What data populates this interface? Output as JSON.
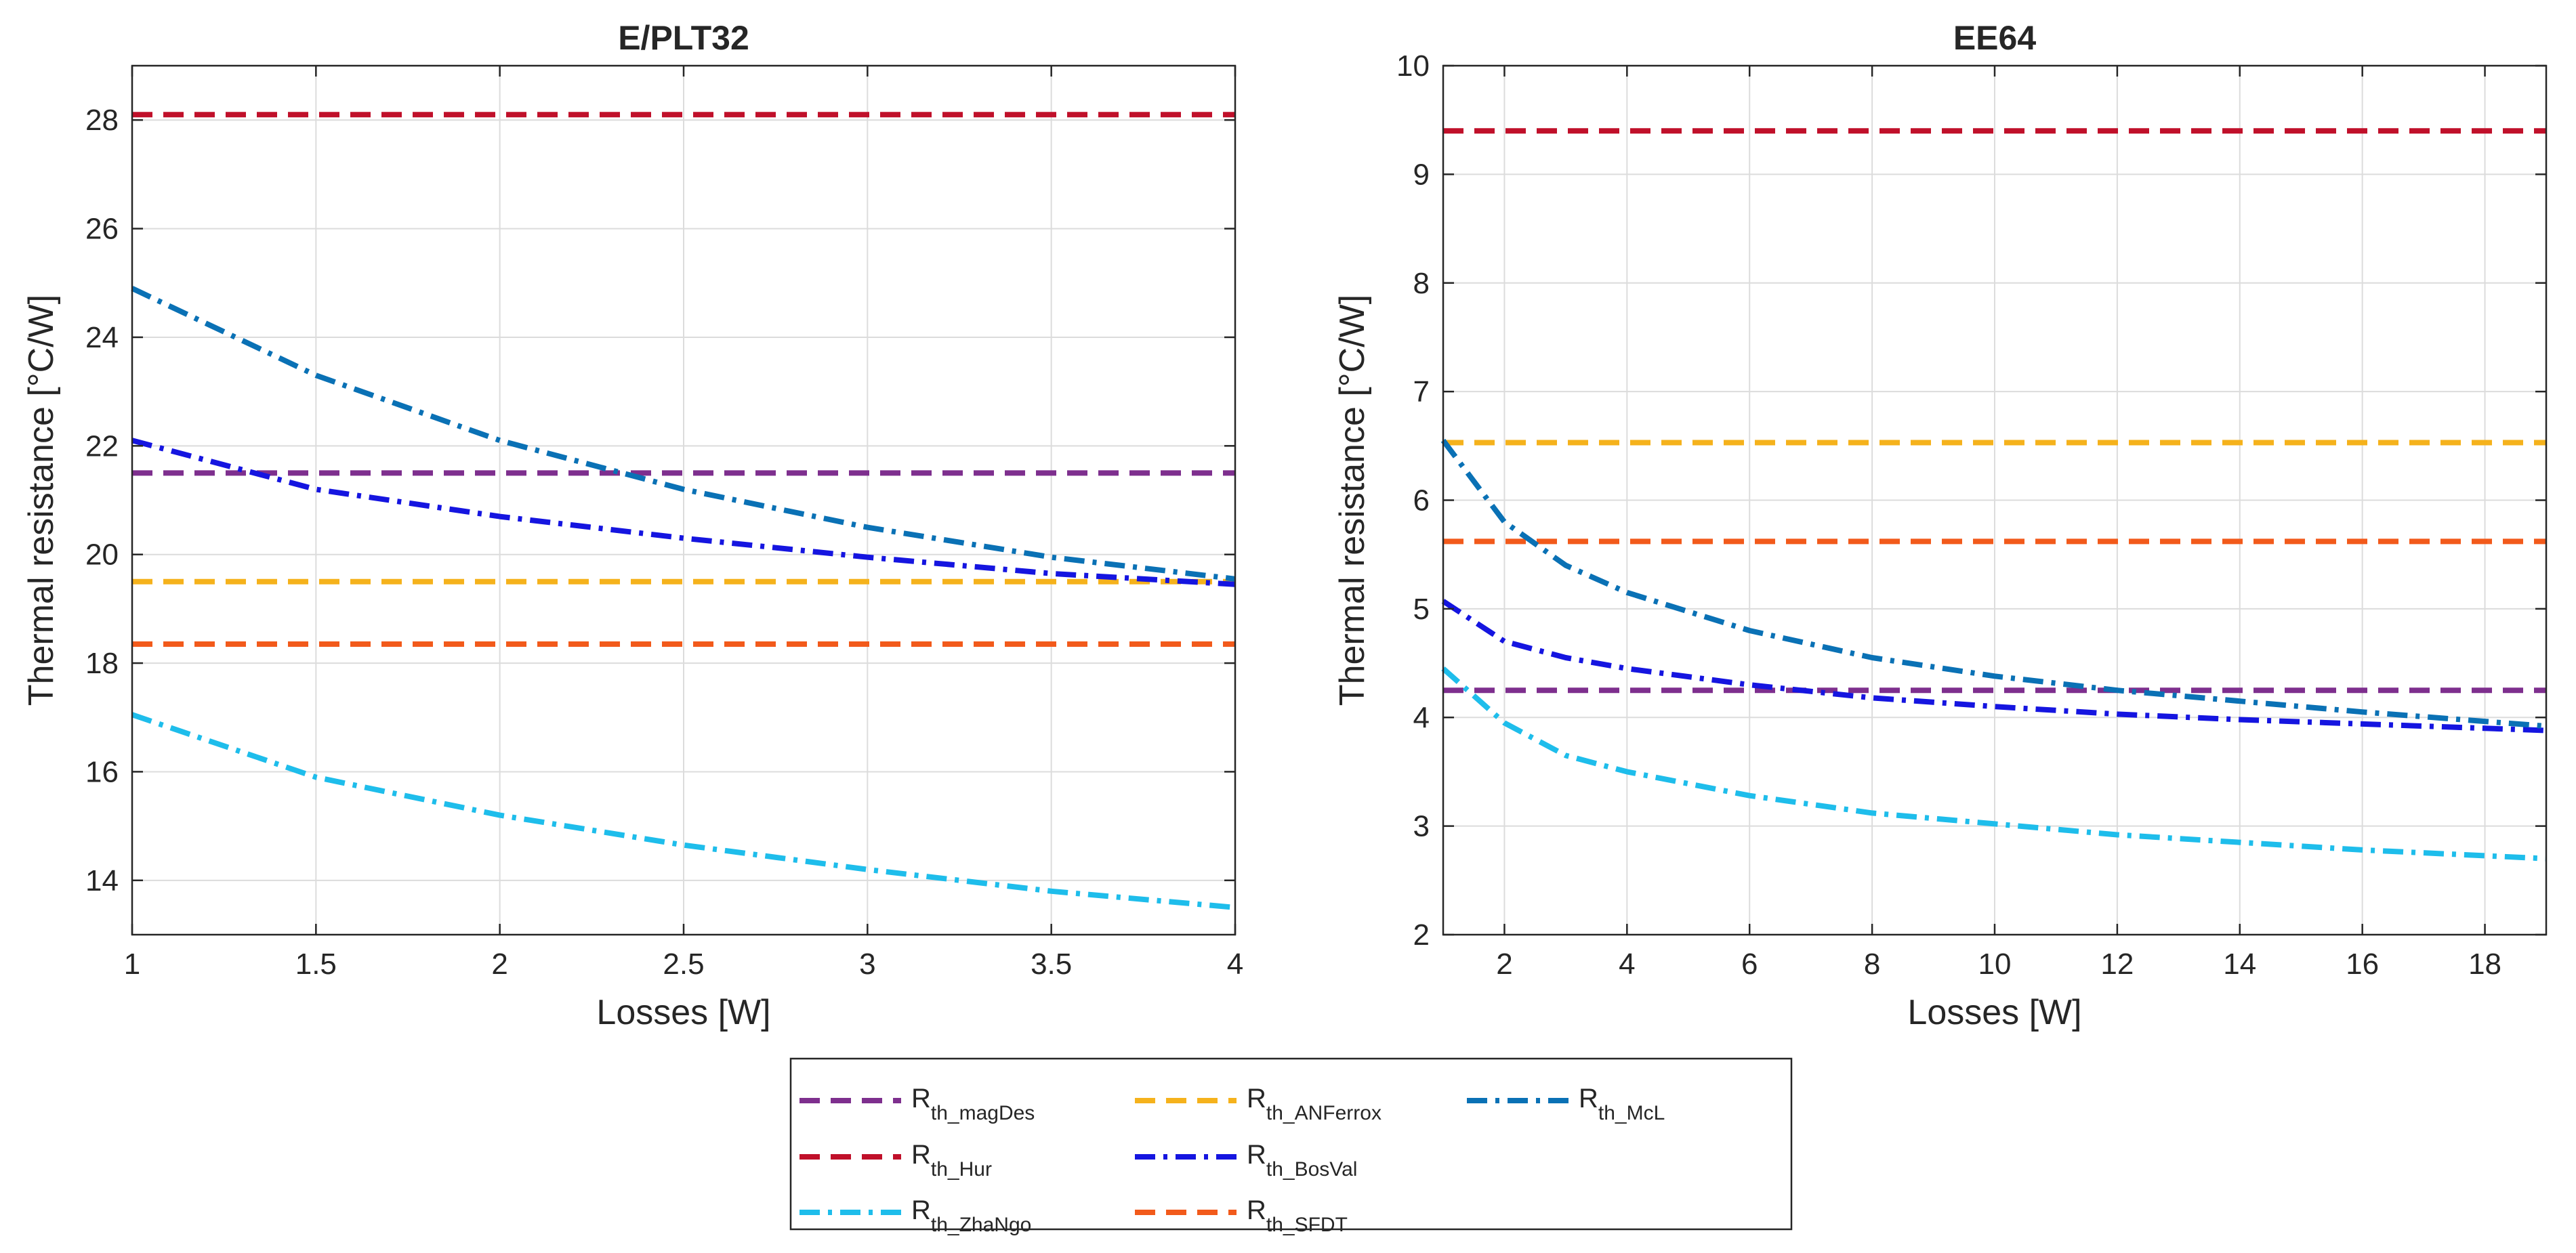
{
  "chart_data": [
    {
      "type": "line",
      "title": "E/PLT32",
      "xlabel": "Losses [W]",
      "ylabel": "Thermal resistance [°C/W]",
      "xlim": [
        1,
        4
      ],
      "ylim": [
        13,
        29
      ],
      "xticks": [
        1,
        1.5,
        2,
        2.5,
        3,
        3.5,
        4
      ],
      "xtick_labels": [
        "1",
        "1.5",
        "2",
        "2.5",
        "3",
        "3.5",
        "4"
      ],
      "yticks": [
        14,
        16,
        18,
        20,
        22,
        24,
        26,
        28
      ],
      "ytick_labels": [
        "14",
        "16",
        "18",
        "20",
        "22",
        "24",
        "26",
        "28"
      ],
      "grid": true,
      "series": [
        {
          "key": "magDes",
          "x": [
            1,
            4
          ],
          "y": [
            21.5,
            21.5
          ]
        },
        {
          "key": "Hur",
          "x": [
            1,
            4
          ],
          "y": [
            28.1,
            28.1
          ]
        },
        {
          "key": "ZhaNgo",
          "x": [
            1,
            1.5,
            2,
            2.5,
            3,
            3.5,
            4
          ],
          "y": [
            17.05,
            15.9,
            15.2,
            14.65,
            14.2,
            13.8,
            13.5
          ]
        },
        {
          "key": "ANFerrox",
          "x": [
            1,
            4
          ],
          "y": [
            19.5,
            19.5
          ]
        },
        {
          "key": "BosVal",
          "x": [
            1,
            1.5,
            2,
            2.5,
            3,
            3.5,
            4
          ],
          "y": [
            22.1,
            21.2,
            20.7,
            20.3,
            19.95,
            19.65,
            19.45
          ]
        },
        {
          "key": "SFDT",
          "x": [
            1,
            4
          ],
          "y": [
            18.35,
            18.35
          ]
        },
        {
          "key": "McL",
          "x": [
            1,
            1.5,
            2,
            2.5,
            3,
            3.5,
            4
          ],
          "y": [
            24.9,
            23.3,
            22.1,
            21.2,
            20.5,
            19.95,
            19.55
          ]
        }
      ]
    },
    {
      "type": "line",
      "title": "EE64",
      "xlabel": "Losses [W]",
      "ylabel": "Thermal resistance [°C/W]",
      "xlim": [
        1,
        19
      ],
      "ylim": [
        2,
        10
      ],
      "xticks": [
        2,
        4,
        6,
        8,
        10,
        12,
        14,
        16,
        18
      ],
      "xtick_labels": [
        "2",
        "4",
        "6",
        "8",
        "10",
        "12",
        "14",
        "16",
        "18"
      ],
      "yticks": [
        2,
        3,
        4,
        5,
        6,
        7,
        8,
        9,
        10
      ],
      "ytick_labels": [
        "2",
        "3",
        "4",
        "5",
        "6",
        "7",
        "8",
        "9",
        "10"
      ],
      "grid": true,
      "series": [
        {
          "key": "magDes",
          "x": [
            1,
            19
          ],
          "y": [
            4.25,
            4.25
          ]
        },
        {
          "key": "Hur",
          "x": [
            1,
            19
          ],
          "y": [
            9.4,
            9.4
          ]
        },
        {
          "key": "ZhaNgo",
          "x": [
            1,
            2,
            3,
            4,
            6,
            8,
            10,
            12,
            14,
            16,
            19
          ],
          "y": [
            4.45,
            3.95,
            3.65,
            3.5,
            3.28,
            3.12,
            3.02,
            2.92,
            2.85,
            2.78,
            2.7
          ]
        },
        {
          "key": "ANFerrox",
          "x": [
            1,
            19
          ],
          "y": [
            6.53,
            6.53
          ]
        },
        {
          "key": "BosVal",
          "x": [
            1,
            2,
            3,
            4,
            6,
            8,
            10,
            12,
            14,
            16,
            19
          ],
          "y": [
            5.07,
            4.7,
            4.55,
            4.45,
            4.3,
            4.18,
            4.1,
            4.03,
            3.98,
            3.94,
            3.88
          ]
        },
        {
          "key": "SFDT",
          "x": [
            1,
            19
          ],
          "y": [
            5.62,
            5.62
          ]
        },
        {
          "key": "McL",
          "x": [
            1,
            2,
            3,
            4,
            6,
            8,
            10,
            12,
            14,
            16,
            19
          ],
          "y": [
            6.55,
            5.8,
            5.4,
            5.15,
            4.8,
            4.55,
            4.38,
            4.25,
            4.15,
            4.05,
            3.92
          ]
        }
      ]
    }
  ],
  "legend": {
    "placement": "bottom-center",
    "entries": [
      {
        "key": "magDes",
        "base": "R",
        "sub": "th_magDes",
        "color": "#7E2F8E",
        "style": "dashed"
      },
      {
        "key": "Hur",
        "base": "R",
        "sub": "th_Hur",
        "color": "#C0102A",
        "style": "dashed"
      },
      {
        "key": "ZhaNgo",
        "base": "R",
        "sub": "th_ZhaNgo",
        "color": "#1EBDEB",
        "style": "dashdot"
      },
      {
        "key": "ANFerrox",
        "base": "R",
        "sub": "th_ANFerrox",
        "color": "#F5B21C",
        "style": "dashed"
      },
      {
        "key": "BosVal",
        "base": "R",
        "sub": "th_BosVal",
        "color": "#1515E0",
        "style": "dashdot"
      },
      {
        "key": "SFDT",
        "base": "R",
        "sub": "th_SFDT",
        "color": "#F25A1B",
        "style": "dashed"
      },
      {
        "key": "McL",
        "base": "R",
        "sub": "th_McL",
        "color": "#0A71B5",
        "style": "dashdot"
      }
    ]
  }
}
